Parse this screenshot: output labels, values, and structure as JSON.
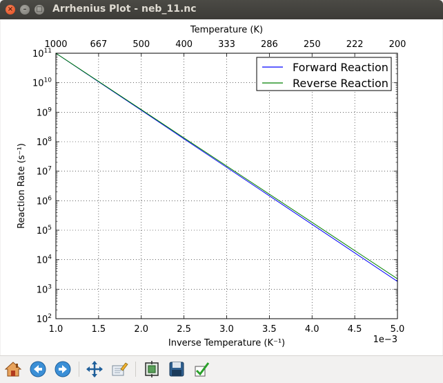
{
  "window": {
    "title": "Arrhenius Plot - neb_11.nc"
  },
  "chart_data": {
    "type": "line",
    "x": [
      1.0,
      1.5,
      2.0,
      2.5,
      3.0,
      3.5,
      4.0,
      4.5,
      5.0
    ],
    "xlim": [
      1.0,
      5.0
    ],
    "xticks": [
      "1.0",
      "1.5",
      "2.0",
      "2.5",
      "3.0",
      "3.5",
      "4.0",
      "4.5",
      "5.0"
    ],
    "x_offset_label": "1e−3",
    "xlabel": "Inverse Temperature (K⁻¹)",
    "ylabel": "Reaction Rate (s⁻¹)",
    "yscale": "log",
    "ylim_exponents": [
      2,
      11
    ],
    "ytick_exponents": [
      "2",
      "3",
      "4",
      "5",
      "6",
      "7",
      "8",
      "9",
      "10",
      "11"
    ],
    "ytick_base": "10",
    "top_axis": {
      "label": "Temperature (K)",
      "ticks": [
        "1000",
        "667",
        "500",
        "400",
        "333",
        "286",
        "250",
        "222",
        "200"
      ]
    },
    "grid": true,
    "legend_position": "top-right",
    "series": [
      {
        "name": "Forward Reaction",
        "color": "#0000ff",
        "log10_values": [
          11.0,
          10.033,
          9.066,
          8.099,
          7.132,
          6.165,
          5.198,
          4.231,
          3.264
        ]
      },
      {
        "name": "Reverse Reaction",
        "color": "#008000",
        "log10_values": [
          11.0,
          10.044,
          9.088,
          8.132,
          7.176,
          6.22,
          5.264,
          4.308,
          3.352
        ]
      }
    ]
  },
  "toolbar": {
    "home": "home-icon",
    "back": "back-icon",
    "forward": "forward-icon",
    "pan": "pan-icon",
    "zoom": "zoom-icon",
    "subplots": "subplots-icon",
    "save": "save-icon",
    "edit": "edit-icon"
  }
}
